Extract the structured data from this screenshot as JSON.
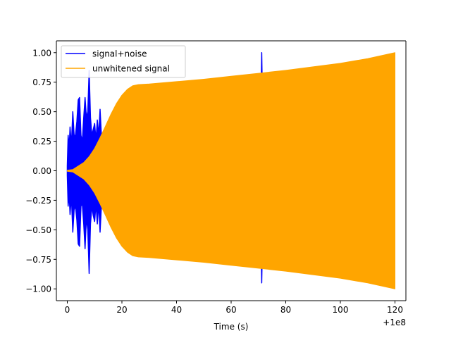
{
  "chart_data": {
    "type": "line",
    "title": "",
    "xlabel": "Time (s)",
    "ylabel": "",
    "x_offset_label": "+1e8",
    "xlim": [
      -4,
      124
    ],
    "ylim": [
      -1.1,
      1.1
    ],
    "xticks": [
      0,
      20,
      40,
      60,
      80,
      100,
      120
    ],
    "xtick_labels": [
      "0",
      "20",
      "40",
      "60",
      "80",
      "100",
      "120"
    ],
    "yticks": [
      1.0,
      0.75,
      0.5,
      0.25,
      0.0,
      -0.25,
      -0.5,
      -0.75,
      -1.0
    ],
    "ytick_labels": [
      "1.00",
      "0.75",
      "0.50",
      "0.25",
      "0.00",
      "−0.25",
      "−0.50",
      "−0.75",
      "−1.00"
    ],
    "grid": false,
    "legend_position": "top-left",
    "series": [
      {
        "name": "signal+noise",
        "color": "#0000ff",
        "envelope": [
          {
            "x": 0.0,
            "upper": 0.04,
            "lower": -0.04
          },
          {
            "x": 0.3,
            "upper": 0.3,
            "lower": -0.3
          },
          {
            "x": 0.7,
            "upper": 0.2,
            "lower": -0.2
          },
          {
            "x": 1.0,
            "upper": 0.37,
            "lower": -0.37
          },
          {
            "x": 1.5,
            "upper": 0.22,
            "lower": -0.22
          },
          {
            "x": 2.0,
            "upper": 0.5,
            "lower": -0.52
          },
          {
            "x": 2.5,
            "upper": 0.3,
            "lower": -0.33
          },
          {
            "x": 3.0,
            "upper": 0.3,
            "lower": -0.3
          },
          {
            "x": 3.5,
            "upper": 0.42,
            "lower": -0.42
          },
          {
            "x": 4.0,
            "upper": 0.6,
            "lower": -0.62
          },
          {
            "x": 4.5,
            "upper": 0.62,
            "lower": -0.64
          },
          {
            "x": 5.0,
            "upper": 0.3,
            "lower": -0.3
          },
          {
            "x": 5.5,
            "upper": 0.25,
            "lower": -0.28
          },
          {
            "x": 6.0,
            "upper": 0.45,
            "lower": -0.45
          },
          {
            "x": 6.5,
            "upper": 0.62,
            "lower": -0.66
          },
          {
            "x": 7.0,
            "upper": 0.45,
            "lower": -0.4
          },
          {
            "x": 7.5,
            "upper": 0.5,
            "lower": -0.5
          },
          {
            "x": 8.0,
            "upper": 0.85,
            "lower": -0.87
          },
          {
            "x": 8.5,
            "upper": 0.45,
            "lower": -0.45
          },
          {
            "x": 9.0,
            "upper": 0.3,
            "lower": -0.3
          },
          {
            "x": 9.5,
            "upper": 0.35,
            "lower": -0.38
          },
          {
            "x": 10.0,
            "upper": 0.4,
            "lower": -0.43
          },
          {
            "x": 10.5,
            "upper": 0.26,
            "lower": -0.28
          },
          {
            "x": 11.0,
            "upper": 0.43,
            "lower": -0.45
          },
          {
            "x": 11.5,
            "upper": 0.3,
            "lower": -0.28
          },
          {
            "x": 12.0,
            "upper": 0.52,
            "lower": -0.52
          },
          {
            "x": 12.5,
            "upper": 0.3,
            "lower": -0.3
          },
          {
            "x": 13.0,
            "upper": 0.2,
            "lower": -0.2
          },
          {
            "x": 15.0,
            "upper": 0.35,
            "lower": -0.35
          },
          {
            "x": 70.8,
            "upper": 0.4,
            "lower": -0.4
          },
          {
            "x": 71.2,
            "upper": 1.0,
            "lower": -0.95
          },
          {
            "x": 71.6,
            "upper": 0.4,
            "lower": -0.4
          }
        ]
      },
      {
        "name": "unwhitened signal",
        "color": "#ffa500",
        "envelope": [
          {
            "x": 0,
            "upper": 0.005,
            "lower": -0.005
          },
          {
            "x": 2,
            "upper": 0.01,
            "lower": -0.01
          },
          {
            "x": 4,
            "upper": 0.04,
            "lower": -0.04
          },
          {
            "x": 6,
            "upper": 0.07,
            "lower": -0.07
          },
          {
            "x": 8,
            "upper": 0.12,
            "lower": -0.12
          },
          {
            "x": 10,
            "upper": 0.19,
            "lower": -0.19
          },
          {
            "x": 12,
            "upper": 0.28,
            "lower": -0.28
          },
          {
            "x": 14,
            "upper": 0.38,
            "lower": -0.38
          },
          {
            "x": 16,
            "upper": 0.48,
            "lower": -0.48
          },
          {
            "x": 18,
            "upper": 0.57,
            "lower": -0.57
          },
          {
            "x": 20,
            "upper": 0.64,
            "lower": -0.64
          },
          {
            "x": 22,
            "upper": 0.69,
            "lower": -0.69
          },
          {
            "x": 24,
            "upper": 0.72,
            "lower": -0.72
          },
          {
            "x": 26,
            "upper": 0.73,
            "lower": -0.73
          },
          {
            "x": 30,
            "upper": 0.735,
            "lower": -0.735
          },
          {
            "x": 40,
            "upper": 0.755,
            "lower": -0.755
          },
          {
            "x": 50,
            "upper": 0.775,
            "lower": -0.775
          },
          {
            "x": 60,
            "upper": 0.8,
            "lower": -0.8
          },
          {
            "x": 70,
            "upper": 0.825,
            "lower": -0.825
          },
          {
            "x": 80,
            "upper": 0.85,
            "lower": -0.85
          },
          {
            "x": 90,
            "upper": 0.88,
            "lower": -0.88
          },
          {
            "x": 100,
            "upper": 0.91,
            "lower": -0.91
          },
          {
            "x": 110,
            "upper": 0.95,
            "lower": -0.95
          },
          {
            "x": 120,
            "upper": 1.0,
            "lower": -1.0
          }
        ]
      }
    ]
  }
}
